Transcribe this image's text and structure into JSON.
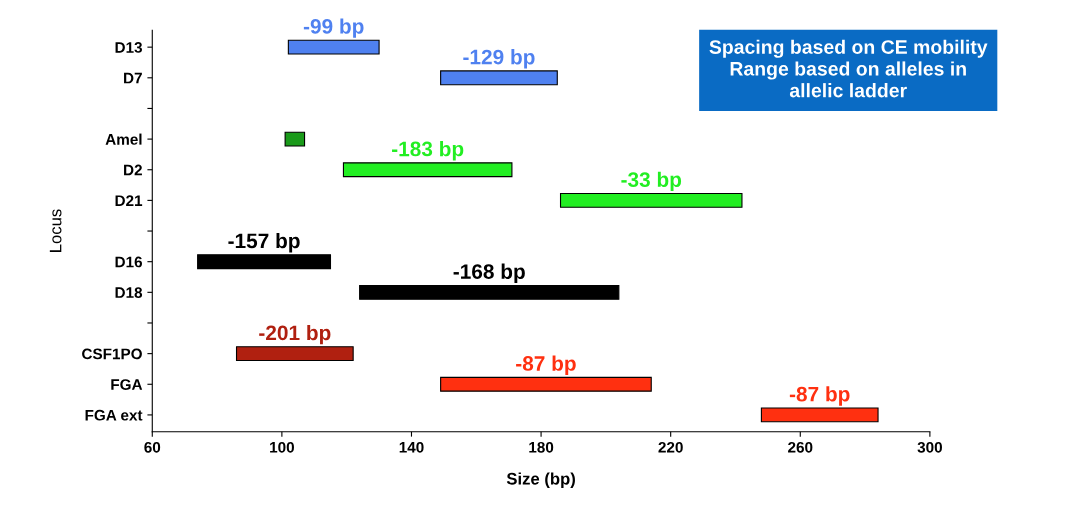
{
  "chart_data": {
    "type": "bar",
    "orientation": "horizontal",
    "xlabel": "Size (bp)",
    "ylabel": "Locus",
    "categories": [
      "D13",
      "D7",
      null,
      "Amel",
      "D2",
      "D21",
      null,
      "D16",
      "D18",
      null,
      "CSF1PO",
      "FGA",
      "FGA ext"
    ],
    "base": [
      102,
      149,
      null,
      101,
      119,
      186,
      null,
      74,
      124,
      null,
      86,
      149,
      248
    ],
    "values": [
      28,
      36,
      null,
      6,
      52,
      56,
      null,
      41,
      80,
      null,
      36,
      65,
      36
    ],
    "colors": [
      "#4f81f0",
      "#4f81f0",
      "#ffffff",
      "#1a9a1a",
      "#22ee22",
      "#22ee22",
      "#ffffff",
      "#000000",
      "#000000",
      "#ffffff",
      "#b02010",
      "#ff3010",
      "#ff3010"
    ],
    "xlim": [
      60,
      300
    ],
    "xticks": [
      60,
      100,
      140,
      180,
      220,
      260,
      300
    ],
    "annotations": [
      "-99 bp",
      "-129 bp",
      "-183 bp",
      "-33 bp",
      "-157 bp",
      "-168 bp",
      "-201 bp",
      "-87 bp",
      "-87 bp",
      "Spacing based on CE mobility\nRange based on alleles in\nallelic ladder"
    ],
    "grid": false,
    "legend": false
  }
}
